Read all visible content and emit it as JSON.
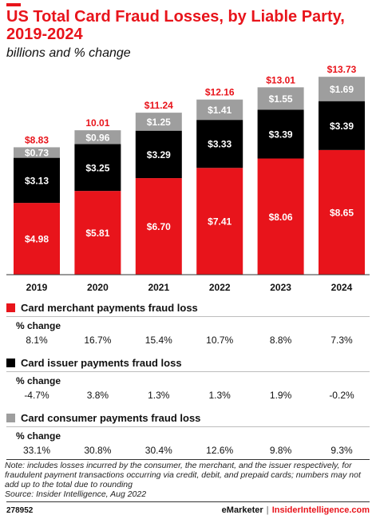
{
  "title": "US Total Card Fraud Losses, by Liable Party, 2019-2024",
  "subtitle": "billions and % change",
  "colors": {
    "merchant": "#e8141b",
    "issuer": "#000000",
    "consumer": "#9e9e9e",
    "total": "#e8141b"
  },
  "chart_data": {
    "type": "bar",
    "stacked": true,
    "categories": [
      "2019",
      "2020",
      "2021",
      "2022",
      "2023",
      "2024"
    ],
    "series": [
      {
        "name": "Card merchant payments fraud loss",
        "values": [
          4.98,
          5.81,
          6.7,
          7.41,
          8.06,
          8.65
        ],
        "labels": [
          "$4.98",
          "$5.81",
          "$6.70",
          "$7.41",
          "$8.06",
          "$8.65"
        ]
      },
      {
        "name": "Card issuer payments fraud loss",
        "values": [
          3.13,
          3.25,
          3.29,
          3.33,
          3.39,
          3.39
        ],
        "labels": [
          "$3.13",
          "$3.25",
          "$3.29",
          "$3.33",
          "$3.39",
          "$3.39"
        ]
      },
      {
        "name": "Card consumer payments fraud loss",
        "values": [
          0.73,
          0.96,
          1.25,
          1.41,
          1.55,
          1.69
        ],
        "labels": [
          "$0.73",
          "$0.96",
          "$1.25",
          "$1.41",
          "$1.55",
          "$1.69"
        ]
      }
    ],
    "totals": [
      8.83,
      10.01,
      11.24,
      12.16,
      13.01,
      13.73
    ],
    "total_labels": [
      "$8.83",
      "10.01",
      "$11.24",
      "$12.16",
      "$13.01",
      "$13.73"
    ],
    "ylim": [
      0,
      14
    ],
    "pct_change": {
      "label": "% change",
      "merchant": [
        "8.1%",
        "16.7%",
        "15.4%",
        "10.7%",
        "8.8%",
        "7.3%"
      ],
      "issuer": [
        "-4.7%",
        "3.8%",
        "1.3%",
        "1.3%",
        "1.9%",
        "-0.2%"
      ],
      "consumer": [
        "33.1%",
        "30.8%",
        "30.4%",
        "12.6%",
        "9.8%",
        "9.3%"
      ]
    }
  },
  "note": "Note: includes losses incurred by the consumer, the merchant, and the issuer respectively, for fraudulent payment transactions occurring via credit, debit, and prepaid cards; numbers may not add up to the total due to rounding",
  "source": "Source: Insider Intelligence, Aug 2022",
  "footer": {
    "id": "278952",
    "brand1": "eMarketer",
    "separator": "|",
    "brand2": "InsiderIntelligence.com"
  }
}
